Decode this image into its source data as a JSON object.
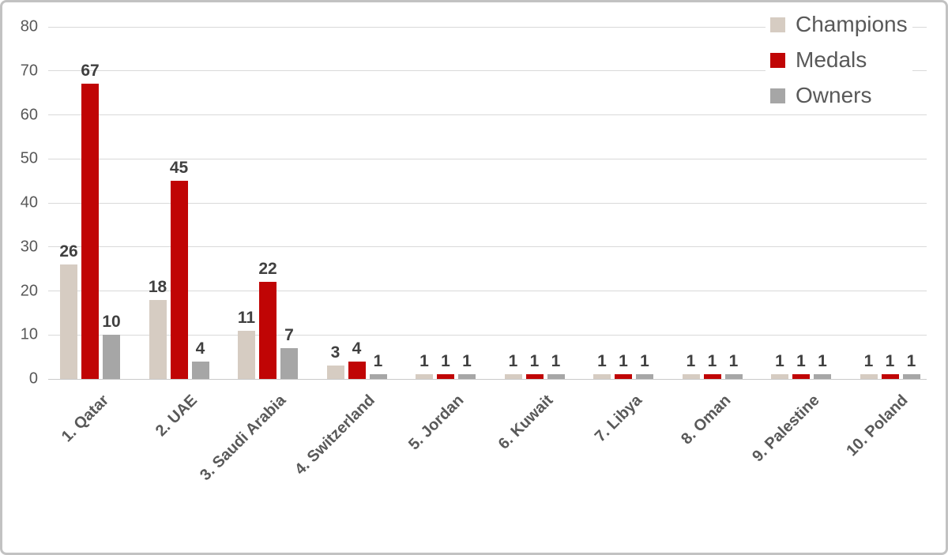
{
  "chart_data": {
    "type": "bar",
    "title": "",
    "xlabel": "",
    "ylabel": "",
    "categories": [
      "1. Qatar",
      "2. UAE",
      "3. Saudi Arabia",
      "4. Switzerland",
      "5. Jordan",
      "6. Kuwait",
      "7. Libya",
      "8. Oman",
      "9. Palestine",
      "10. Poland"
    ],
    "series": [
      {
        "name": "Champions",
        "color": "#d6ccc2",
        "values": [
          26,
          18,
          11,
          3,
          1,
          1,
          1,
          1,
          1,
          1
        ]
      },
      {
        "name": "Medals",
        "color": "#c00505",
        "values": [
          67,
          45,
          22,
          4,
          1,
          1,
          1,
          1,
          1,
          1
        ]
      },
      {
        "name": "Owners",
        "color": "#a6a6a6",
        "values": [
          10,
          4,
          7,
          1,
          1,
          1,
          1,
          1,
          1,
          1
        ]
      }
    ],
    "ylim": [
      0,
      80
    ],
    "ytick_step": 10,
    "yticks": [
      0,
      10,
      20,
      30,
      40,
      50,
      60,
      70,
      80
    ],
    "grid": true,
    "data_labels": true,
    "legend_position": "top-right",
    "x_label_rotation_deg": -45
  },
  "colors": {
    "gridline": "#d9d9d9",
    "baseline": "#c9c9c9",
    "axis_text": "#595959",
    "data_label_text": "#404040",
    "frame_border": "#c2c2c2",
    "background": "#ffffff"
  }
}
